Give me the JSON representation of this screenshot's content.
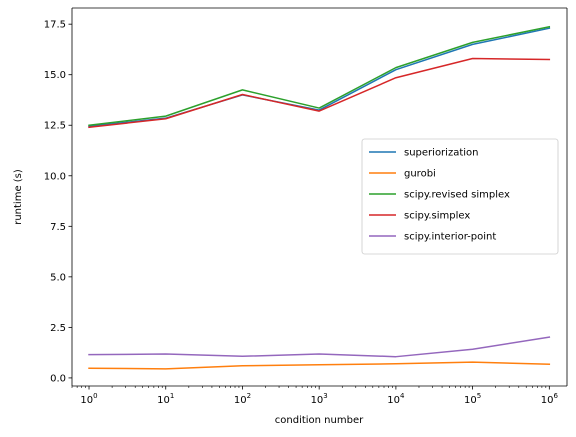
{
  "chart_data": {
    "type": "line",
    "xscale": "log",
    "x": [
      1,
      10,
      100,
      1000,
      10000,
      100000,
      1000000
    ],
    "x_tick_labels": [
      {
        "base": "10",
        "exp": "0"
      },
      {
        "base": "10",
        "exp": "1"
      },
      {
        "base": "10",
        "exp": "2"
      },
      {
        "base": "10",
        "exp": "3"
      },
      {
        "base": "10",
        "exp": "4"
      },
      {
        "base": "10",
        "exp": "5"
      },
      {
        "base": "10",
        "exp": "6"
      }
    ],
    "y_ticks": [
      0.0,
      2.5,
      5.0,
      7.5,
      10.0,
      12.5,
      15.0,
      17.5
    ],
    "y_tick_labels": [
      "0.0",
      "2.5",
      "5.0",
      "7.5",
      "10.0",
      "12.5",
      "15.0",
      "17.5"
    ],
    "xlabel": "condition number",
    "ylabel": "runtime (s)",
    "xlim": [
      0.6,
      1700000
    ],
    "ylim": [
      -0.4,
      18.3
    ],
    "grid": false,
    "legend_position": "center-right",
    "series": [
      {
        "name": "superiorization",
        "color": "#1f77b4",
        "values": [
          12.45,
          12.85,
          14.0,
          13.25,
          15.25,
          16.5,
          17.3
        ]
      },
      {
        "name": "gurobi",
        "color": "#ff7f0e",
        "values": [
          0.48,
          0.45,
          0.6,
          0.65,
          0.7,
          0.78,
          0.68
        ]
      },
      {
        "name": "scipy.revised simplex",
        "color": "#2ca02c",
        "values": [
          12.5,
          12.95,
          14.25,
          13.35,
          15.35,
          16.6,
          17.37
        ]
      },
      {
        "name": "scipy.simplex",
        "color": "#d62728",
        "values": [
          12.4,
          12.82,
          14.02,
          13.2,
          14.85,
          15.8,
          15.75
        ]
      },
      {
        "name": "scipy.interior-point",
        "color": "#9467bd",
        "values": [
          1.15,
          1.18,
          1.07,
          1.18,
          1.05,
          1.42,
          2.02
        ]
      }
    ]
  }
}
